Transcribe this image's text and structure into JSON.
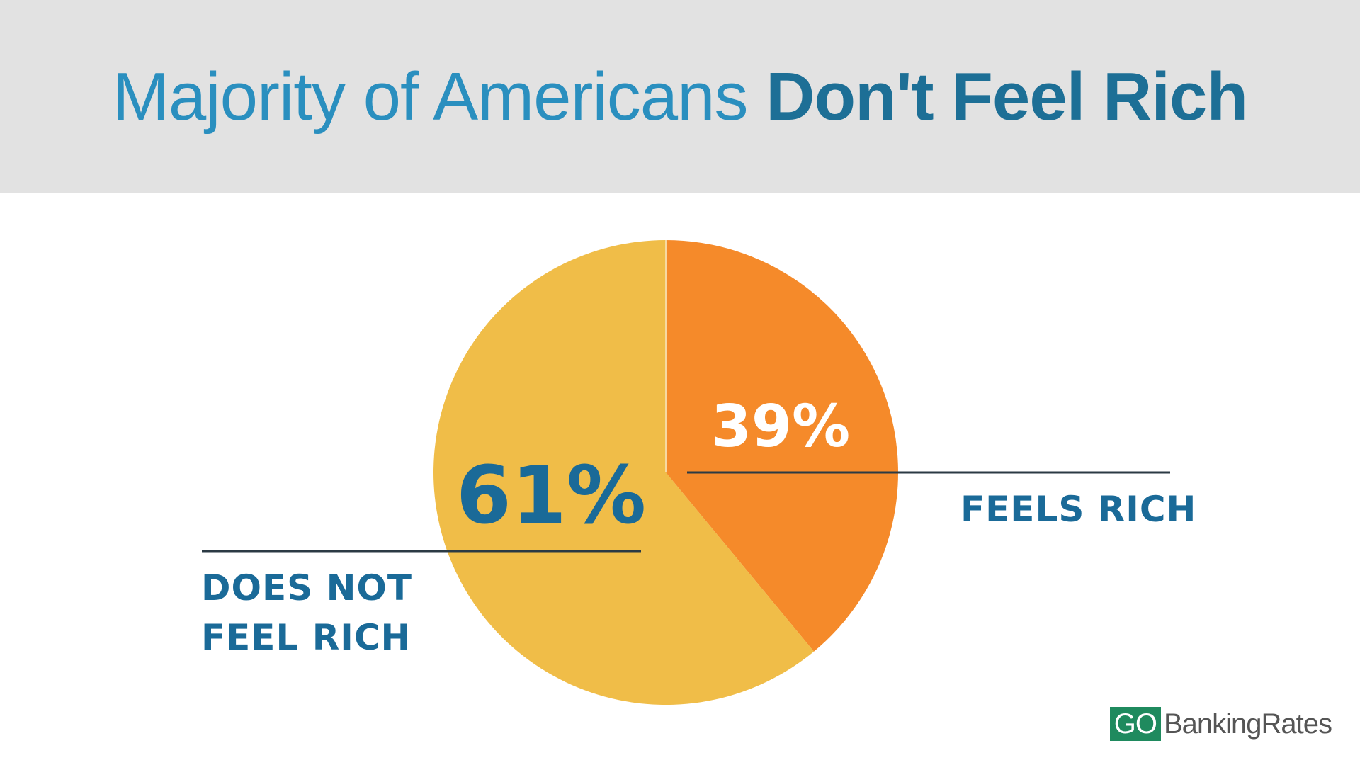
{
  "header": {
    "title_light": "Majority of Americans ",
    "title_bold": "Don't Feel Rich"
  },
  "colors": {
    "header_bg": "#e2e2e2",
    "title_light": "#2a8fbf",
    "title_bold": "#1d6f96",
    "slice_does_not": "#f0bd48",
    "slice_feels": "#f58a2a",
    "label_text": "#1a6a98",
    "leader_line": "#2b3a44",
    "logo_green": "#1f8a5e"
  },
  "chart_data": {
    "type": "pie",
    "slices": [
      {
        "label": "FEELS RICH",
        "value": 39,
        "display": "39%"
      },
      {
        "label_lines": [
          "DOES NOT",
          "FEEL RICH"
        ],
        "value": 61,
        "display": "61%"
      }
    ]
  },
  "labels": {
    "left_line1": "DOES NOT",
    "left_line2": "FEEL RICH",
    "right": "FEELS RICH"
  },
  "logo": {
    "go": "GO",
    "rest": "BankingRates"
  }
}
